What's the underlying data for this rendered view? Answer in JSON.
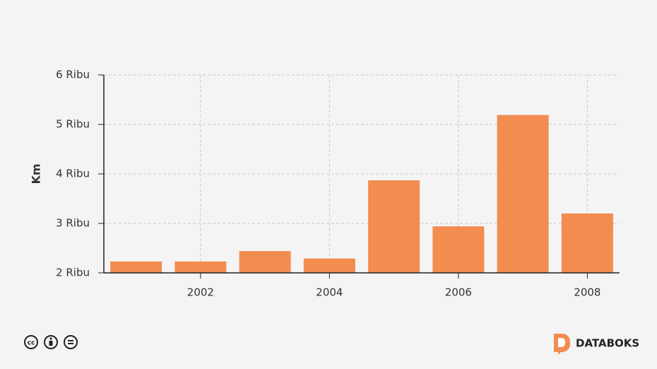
{
  "chart_data": {
    "type": "bar",
    "ylabel": "Km",
    "x": [
      2001,
      2002,
      2003,
      2004,
      2005,
      2006,
      2007,
      2008
    ],
    "values": [
      2230,
      2230,
      2440,
      2290,
      3870,
      2940,
      5190,
      3200
    ],
    "color": "#f28c4f",
    "xlim": [
      2000.5,
      2008.5
    ],
    "xticks": [
      2002,
      2004,
      2006,
      2008
    ],
    "ylim": [
      2000,
      6000
    ],
    "yticks": [
      {
        "value": 2000,
        "label": "2 Ribu"
      },
      {
        "value": 3000,
        "label": "3 Ribu"
      },
      {
        "value": 4000,
        "label": "4 Ribu"
      },
      {
        "value": 5000,
        "label": "5 Ribu"
      },
      {
        "value": 6000,
        "label": "6 Ribu"
      }
    ],
    "grid": true
  },
  "footer": {
    "brand": "DATABOKS"
  }
}
